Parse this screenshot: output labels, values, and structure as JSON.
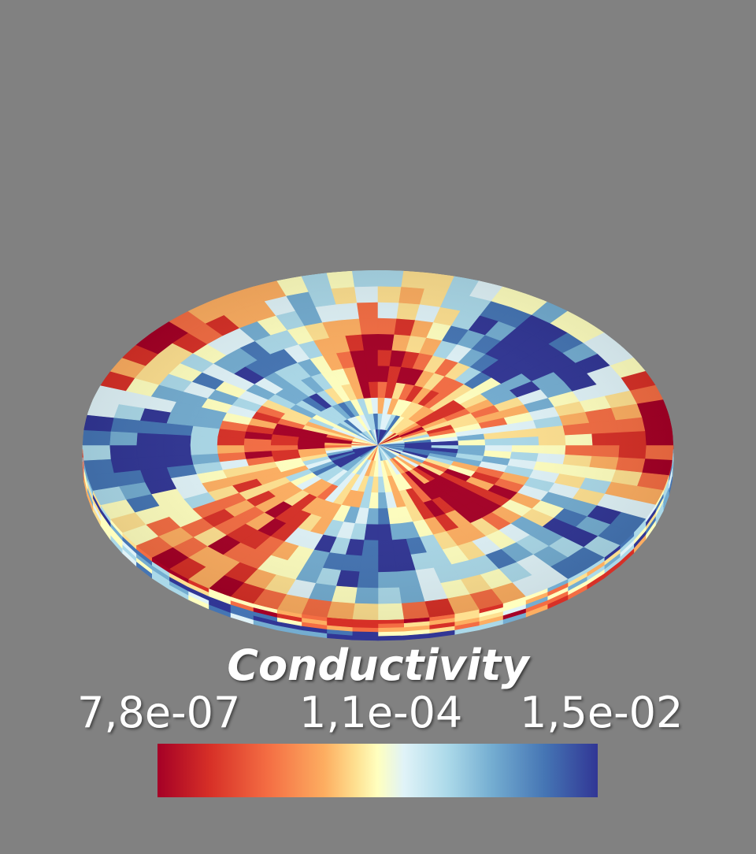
{
  "scene": {
    "background_color": "#818181",
    "object": "disk",
    "colormap_colors": [
      "#a50026",
      "#d73027",
      "#f46d43",
      "#fdae61",
      "#fee090",
      "#ffffbf",
      "#e0f3f8",
      "#abd9e9",
      "#74add1",
      "#4575b4",
      "#313695"
    ]
  },
  "legend": {
    "title": "Conductivity",
    "ticks": {
      "min": "7,8e-07",
      "mid": "1,1e-04",
      "max": "1,5e-02"
    }
  }
}
